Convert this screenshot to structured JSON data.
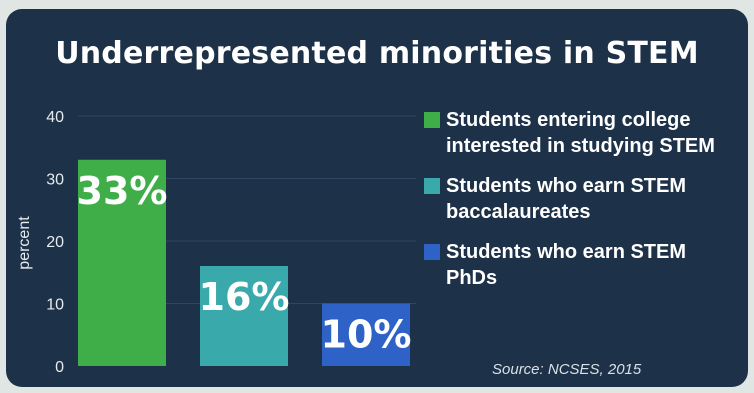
{
  "chart_data": {
    "type": "bar",
    "title": "Underrepresented minorities in STEM",
    "ylabel": "percent",
    "ylim": [
      0,
      40
    ],
    "yticks": [
      0,
      10,
      20,
      30,
      40
    ],
    "grid": true,
    "legend_placement": "right",
    "categories": [
      "Students entering college interested in studying STEM",
      "Students who earn STEM baccalaureates",
      "Students who earn STEM PhDs"
    ],
    "values": [
      33,
      16,
      10
    ],
    "data_labels": [
      "33%",
      "16%",
      "10%"
    ],
    "colors": [
      "#3fae49",
      "#3aa9ab",
      "#2f62c7"
    ],
    "source": "Source: NCSES, 2015"
  }
}
